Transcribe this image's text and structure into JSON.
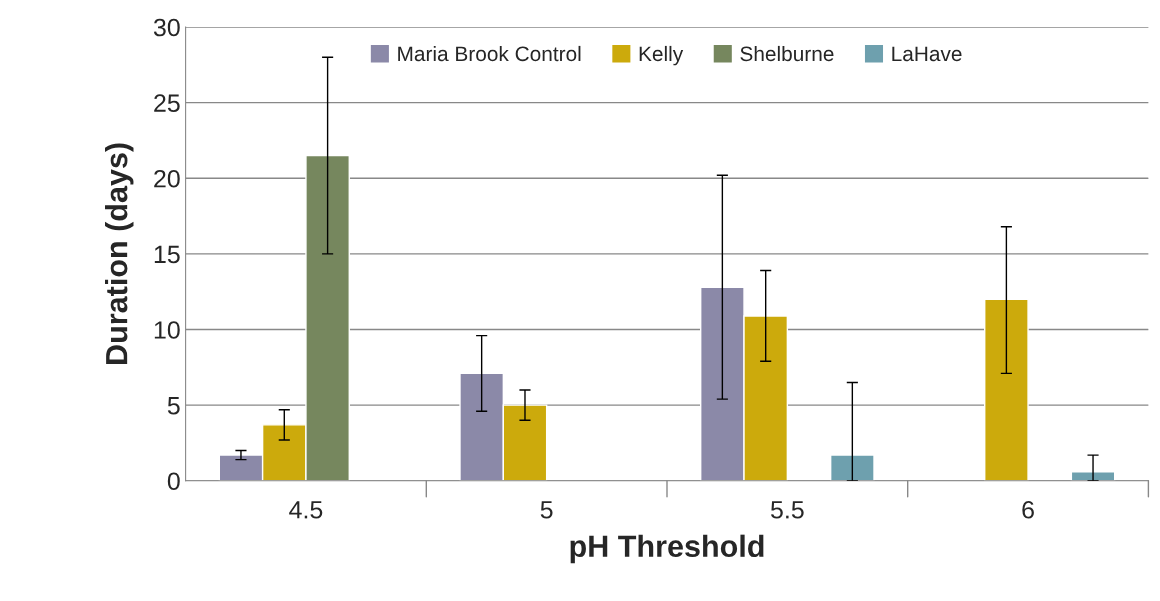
{
  "chart_data": {
    "type": "bar",
    "xlabel": "pH Threshold",
    "ylabel": "Duration (days)",
    "categories": [
      "4.5",
      "5",
      "5.5",
      "6"
    ],
    "series": [
      {
        "name": "Maria Brook Control",
        "color": "#8b89a8",
        "values": [
          1.7,
          7.1,
          12.8,
          null
        ],
        "errors": [
          0.3,
          2.5,
          7.4,
          null
        ]
      },
      {
        "name": "Kelly",
        "color": "#ccaa0c",
        "values": [
          3.7,
          5.0,
          10.9,
          12.0
        ],
        "errors": [
          1.0,
          1.0,
          3.0,
          [
            7.1,
            16.8
          ]
        ]
      },
      {
        "name": "Shelburne",
        "color": "#76875e",
        "values": [
          21.5,
          null,
          null,
          null
        ],
        "errors": [
          6.5,
          null,
          null,
          null
        ]
      },
      {
        "name": "LaHave",
        "color": "#6ea0ae",
        "values": [
          null,
          null,
          1.7,
          0.6
        ],
        "errors": [
          null,
          null,
          [
            0,
            6.5
          ],
          [
            0,
            1.7
          ]
        ]
      }
    ],
    "ylim": [
      0,
      30
    ],
    "yticks": [
      0,
      5,
      10,
      15,
      20,
      25,
      30
    ],
    "grid": "y",
    "legend": "top"
  }
}
